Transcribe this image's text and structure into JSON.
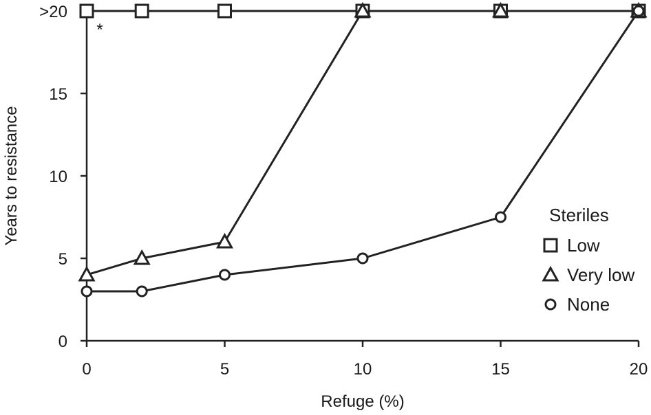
{
  "chart_data": {
    "type": "line",
    "title": "",
    "xlabel": "Refuge (%)",
    "ylabel": "Years to resistance",
    "xlim": [
      0,
      20
    ],
    "ylim": [
      0,
      20
    ],
    "x_ticks": [
      0,
      5,
      10,
      15,
      20
    ],
    "x_tick_labels": [
      "0",
      "5",
      "10",
      "15",
      "20"
    ],
    "y_ticks": [
      0,
      5,
      10,
      15,
      20
    ],
    "y_tick_labels": [
      "0",
      "5",
      "10",
      "15",
      ">20"
    ],
    "grid": false,
    "legend": {
      "title": "Steriles",
      "placement": "right"
    },
    "annotation": {
      "text": "*",
      "x": 0,
      "y": 20
    },
    "series": [
      {
        "name": "Low",
        "marker": "square",
        "points": [
          [
            0,
            20
          ],
          [
            2,
            20
          ],
          [
            5,
            20
          ],
          [
            10,
            20
          ],
          [
            15,
            20
          ],
          [
            20,
            20
          ]
        ]
      },
      {
        "name": "Very low",
        "marker": "triangle",
        "points": [
          [
            0,
            4
          ],
          [
            2,
            5
          ],
          [
            5,
            6
          ],
          [
            10,
            20
          ],
          [
            15,
            20
          ],
          [
            20,
            20
          ]
        ]
      },
      {
        "name": "None",
        "marker": "circle",
        "points": [
          [
            0,
            3
          ],
          [
            2,
            3
          ],
          [
            5,
            4
          ],
          [
            10,
            5
          ],
          [
            15,
            7.5
          ],
          [
            20,
            20
          ]
        ]
      }
    ]
  }
}
